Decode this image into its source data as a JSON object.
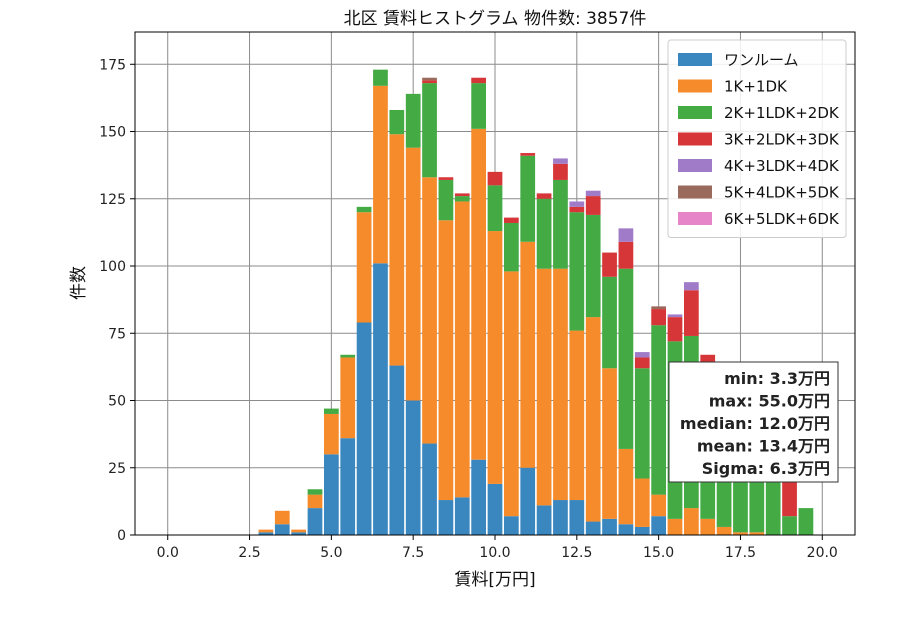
{
  "chart_data": {
    "type": "bar",
    "stacked": true,
    "title": "北区 賃料ヒストグラム  物件数: 3857件",
    "xlabel": "賃料[万円]",
    "ylabel": "件数",
    "xlim": [
      -1.0,
      21.0
    ],
    "ylim": [
      0,
      187
    ],
    "xticks": [
      "0.0",
      "2.5",
      "5.0",
      "7.5",
      "10.0",
      "12.5",
      "15.0",
      "17.5",
      "20.0"
    ],
    "yticks": [
      "0",
      "25",
      "50",
      "75",
      "100",
      "125",
      "150",
      "175"
    ],
    "grid": true,
    "legend_position": "top-right",
    "bin_width": 0.5,
    "x": [
      3.0,
      3.5,
      4.0,
      4.5,
      5.0,
      5.5,
      6.0,
      6.5,
      7.0,
      7.5,
      8.0,
      8.5,
      9.0,
      9.5,
      10.0,
      10.5,
      11.0,
      11.5,
      12.0,
      12.5,
      13.0,
      13.5,
      14.0,
      14.5,
      15.0,
      15.5,
      16.0,
      16.5,
      17.0,
      17.5,
      18.0,
      18.5,
      19.0,
      19.5
    ],
    "series": [
      {
        "name": "ワンルーム",
        "color": "#3a87c0",
        "values": [
          1,
          4,
          1,
          10,
          30,
          36,
          79,
          101,
          63,
          50,
          34,
          13,
          14,
          28,
          19,
          7,
          25,
          11,
          13,
          13,
          5,
          6,
          4,
          3,
          7,
          0,
          0,
          0,
          0,
          0,
          0,
          0,
          0,
          0
        ]
      },
      {
        "name": "1K+1DK",
        "color": "#f68b2b",
        "values": [
          1,
          5,
          1,
          5,
          15,
          30,
          41,
          66,
          86,
          94,
          99,
          104,
          110,
          123,
          94,
          91,
          84,
          88,
          86,
          63,
          76,
          56,
          28,
          18,
          8,
          6,
          10,
          6,
          3,
          1,
          1,
          0,
          0,
          0
        ]
      },
      {
        "name": "2K+1LDK+2DK",
        "color": "#43aa44",
        "values": [
          0,
          0,
          0,
          2,
          2,
          1,
          2,
          6,
          9,
          20,
          35,
          15,
          2,
          17,
          17,
          18,
          32,
          26,
          33,
          44,
          38,
          34,
          67,
          41,
          63,
          66,
          64,
          55,
          47,
          40,
          32,
          27,
          7,
          10
        ]
      },
      {
        "name": "3K+2LDK+3DK",
        "color": "#d63637",
        "values": [
          0,
          0,
          0,
          0,
          0,
          0,
          0,
          0,
          0,
          0,
          1,
          1,
          1,
          2,
          5,
          2,
          1,
          2,
          6,
          2,
          7,
          9,
          10,
          4,
          6,
          9,
          17,
          6,
          11,
          12,
          10,
          24,
          16,
          0
        ]
      },
      {
        "name": "4K+3LDK+4DK",
        "color": "#a07bc8",
        "values": [
          0,
          0,
          0,
          0,
          0,
          0,
          0,
          0,
          0,
          0,
          0,
          0,
          0,
          0,
          0,
          0,
          0,
          0,
          2,
          2,
          2,
          0,
          5,
          2,
          0,
          1,
          3,
          0,
          0,
          0,
          0,
          0,
          0,
          0
        ]
      },
      {
        "name": "5K+4LDK+5DK",
        "color": "#9a6b5c",
        "values": [
          0,
          0,
          0,
          0,
          0,
          0,
          0,
          0,
          0,
          0,
          1,
          0,
          0,
          0,
          0,
          0,
          0,
          0,
          0,
          0,
          0,
          0,
          0,
          0,
          1,
          0,
          0,
          0,
          0,
          0,
          0,
          0,
          0,
          0
        ]
      },
      {
        "name": "6K+5LDK+6DK",
        "color": "#e686c8",
        "values": [
          0,
          0,
          0,
          0,
          0,
          0,
          0,
          0,
          0,
          0,
          0,
          0,
          0,
          0,
          0,
          0,
          0,
          0,
          0,
          0,
          0,
          0,
          0,
          0,
          0,
          0,
          0,
          0,
          0,
          0,
          0,
          0,
          0,
          0
        ]
      }
    ],
    "stats": [
      "min: 3.3万円",
      "max: 55.0万円",
      "median: 12.0万円",
      "mean: 13.4万円",
      "Sigma: 6.3万円"
    ]
  }
}
